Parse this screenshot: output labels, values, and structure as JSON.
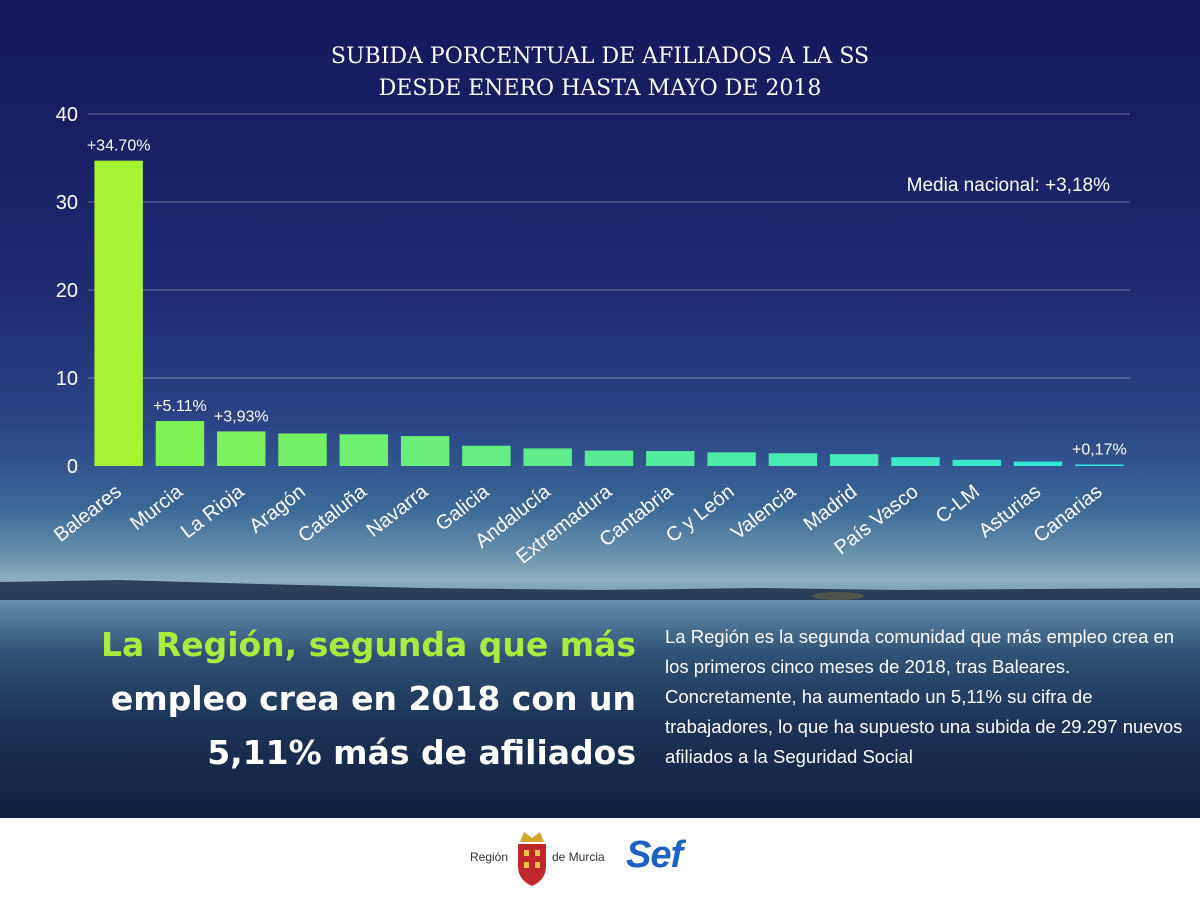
{
  "chart_data": {
    "type": "bar",
    "title_lines": [
      "SUBIDA PORCENTUAL DE AFILIADOS A LA SS",
      "DESDE ENERO HASTA MAYO DE 2018"
    ],
    "categories": [
      "Baleares",
      "Murcia",
      "La Rioja",
      "Aragón",
      "Cataluña",
      "Navarra",
      "Galicia",
      "Andalucía",
      "Extremadura",
      "Cantabria",
      "C y León",
      "Valencia",
      "Madrid",
      "País Vasco",
      "C-LM",
      "Asturias",
      "Canarias"
    ],
    "values": [
      34.7,
      5.11,
      3.93,
      3.7,
      3.6,
      3.4,
      2.3,
      2.0,
      1.75,
      1.7,
      1.55,
      1.45,
      1.35,
      1.0,
      0.7,
      0.5,
      0.17
    ],
    "data_labels": [
      "+34.70%",
      "+5.11%",
      "+3,93%",
      "",
      "",
      "",
      "",
      "",
      "",
      "",
      "",
      "",
      "",
      "",
      "",
      "",
      "+0,17%"
    ],
    "yticks": [
      0,
      10,
      20,
      30,
      40
    ],
    "ylim": [
      0,
      40
    ],
    "grid": true,
    "annotation": "Media nacional: +3,18%",
    "colors": {
      "highlight": "#a7f432",
      "gradient_start": "#7ff254",
      "gradient_end": "#2ee6e0"
    }
  },
  "headline": {
    "line1": "La Región, segunda que más",
    "line2": "empleo crea en 2018 con un",
    "line3": "5,11% más de afiliados"
  },
  "summary": "La Región es la segunda comunidad que más empleo crea en los primeros cinco meses de 2018, tras Baleares. Concretamente, ha aumentado un 5,11% su cifra de trabajadores, lo que ha supuesto una subida de 29.297 nuevos afiliados a la Seguridad Social",
  "footer": {
    "region_left": "Región",
    "region_right": "de Murcia",
    "sef": "Sef"
  }
}
